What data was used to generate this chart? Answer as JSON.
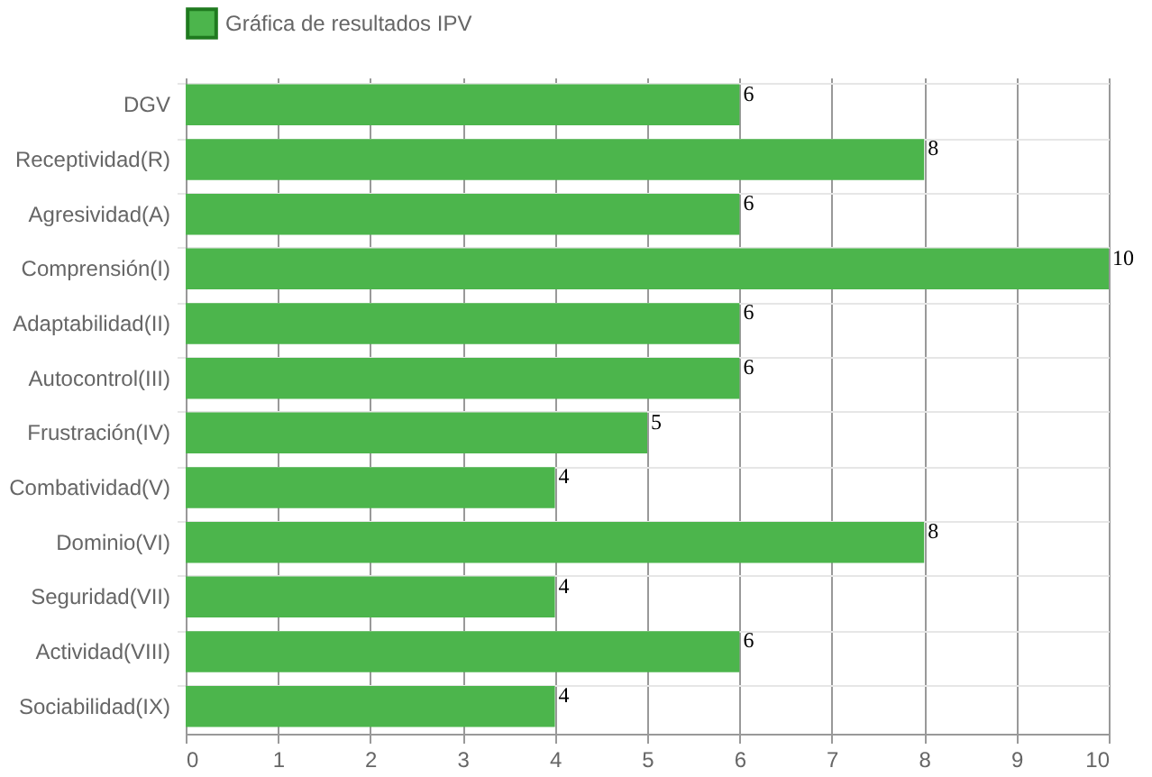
{
  "chart_data": {
    "type": "bar",
    "orientation": "horizontal",
    "categories": [
      "DGV",
      "Receptividad(R)",
      "Agresividad(A)",
      "Comprensión(I)",
      "Adaptabilidad(II)",
      "Autocontrol(III)",
      "Frustración(IV)",
      "Combatividad(V)",
      "Dominio(VI)",
      "Seguridad(VII)",
      "Actividad(VIII)",
      "Sociabilidad(IX)"
    ],
    "series": [
      {
        "name": "Gráfica de resultados IPV",
        "color": "#4cb54c",
        "values": [
          6,
          8,
          6,
          10,
          6,
          6,
          5,
          4,
          8,
          4,
          6,
          4
        ]
      }
    ],
    "xlim": [
      0,
      10
    ],
    "xticks": [
      0,
      1,
      2,
      3,
      4,
      5,
      6,
      7,
      8,
      9,
      10
    ],
    "grid": true,
    "legend": "top",
    "data_labels": true
  }
}
